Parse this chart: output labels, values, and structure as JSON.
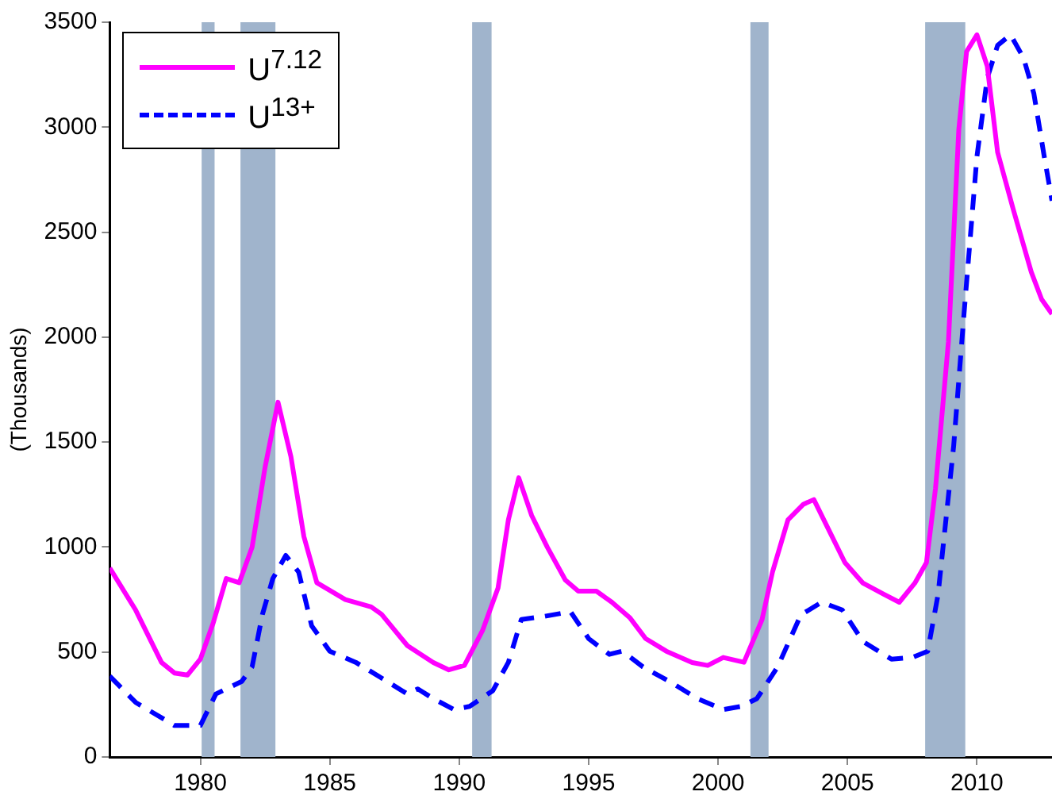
{
  "chart_data": {
    "type": "line",
    "ylabel": "(Thousands)",
    "xlim": [
      1976.5,
      2012.9
    ],
    "xticks": [
      1980,
      1985,
      1990,
      1995,
      2000,
      2005,
      2010
    ],
    "ylim": [
      0,
      3500
    ],
    "yticks": [
      0,
      500,
      1000,
      1500,
      2000,
      2500,
      3000,
      3500
    ],
    "grid": false,
    "legend": "top left",
    "marker": "none",
    "bands": [
      {
        "axis": "x",
        "from": 1980.05,
        "to": 1980.55,
        "color": "#a0b4cc"
      },
      {
        "axis": "x",
        "from": 1981.55,
        "to": 1982.9,
        "color": "#a0b4cc"
      },
      {
        "axis": "x",
        "from": 1990.5,
        "to": 1991.25,
        "color": "#a0b4cc"
      },
      {
        "axis": "x",
        "from": 2001.25,
        "to": 2001.95,
        "color": "#a0b4cc"
      },
      {
        "axis": "x",
        "from": 2008.0,
        "to": 2009.55,
        "color": "#a0b4cc"
      }
    ],
    "series": [
      {
        "name": "U$^{7.12}$",
        "color": "#ff00ff",
        "line_style": "solid",
        "x": [
          1976.5,
          1977.5,
          1978.5,
          1979,
          1979.5,
          1980,
          1980.5,
          1981,
          1981.5,
          1982,
          1982.5,
          1983,
          1983.5,
          1984,
          1984.5,
          1985.6,
          1986.6,
          1987,
          1988,
          1989,
          1989.6,
          1990.2,
          1990.9,
          1991.5,
          1991.9,
          1992.3,
          1992.8,
          1993.4,
          1994.1,
          1994.6,
          1995.3,
          1995.9,
          1996.6,
          1997.2,
          1998,
          1999,
          1999.6,
          2000.2,
          2001,
          2001.7,
          2002.1,
          2002.7,
          2003.3,
          2003.7,
          2004.3,
          2004.9,
          2005.6,
          2006.4,
          2007,
          2007.6,
          2008.05,
          2008.4,
          2008.9,
          2009.3,
          2009.6,
          2010,
          2010.4,
          2010.8,
          2011.4,
          2012.1,
          2012.5,
          2012.9
        ],
        "values": [
          900,
          700,
          450,
          400,
          390,
          466,
          640,
          850,
          830,
          1000,
          1380,
          1690,
          1430,
          1050,
          830,
          750,
          715,
          680,
          530,
          450,
          415,
          436,
          602,
          805,
          1130,
          1330,
          1150,
          1000,
          843,
          790,
          790,
          737,
          662,
          564,
          504,
          450,
          436,
          474,
          451,
          655,
          880,
          1130,
          1204,
          1226,
          1076,
          926,
          828,
          775,
          737,
          828,
          926,
          1280,
          1980,
          2990,
          3360,
          3440,
          3290,
          2880,
          2610,
          2310,
          2180,
          2110
        ]
      },
      {
        "name": "U$^{13+}$",
        "color": "#0000ff",
        "line_style": "dashed",
        "x": [
          1976.5,
          1977.5,
          1979,
          1980,
          1980.6,
          1981.6,
          1982,
          1982.4,
          1982.8,
          1983.3,
          1983.8,
          1984.3,
          1985,
          1986,
          1987,
          1988,
          1988.4,
          1989,
          1989.8,
          1990.4,
          1991.3,
          1991.9,
          1992.4,
          1993.3,
          1994.3,
          1995,
          1995.8,
          1996.3,
          1997.1,
          1998.2,
          1999.2,
          2000.2,
          2000.9,
          2001.5,
          2002.3,
          2003.2,
          2004,
          2004.8,
          2005.6,
          2006.7,
          2007.5,
          2008.1,
          2008.5,
          2009.1,
          2009.5,
          2010,
          2010.4,
          2010.8,
          2011.3,
          2011.8,
          2012.2,
          2012.6,
          2012.9
        ],
        "values": [
          385,
          260,
          150,
          150,
          300,
          360,
          430,
          680,
          850,
          960,
          880,
          625,
          504,
          451,
          376,
          300,
          324,
          278,
          226,
          241,
          316,
          451,
          655,
          670,
          692,
          564,
          489,
          504,
          429,
          354,
          278,
          226,
          241,
          278,
          429,
          677,
          737,
          700,
          550,
          466,
          474,
          504,
          775,
          1480,
          2110,
          2860,
          3235,
          3390,
          3440,
          3330,
          3160,
          2860,
          2650
        ]
      }
    ]
  }
}
